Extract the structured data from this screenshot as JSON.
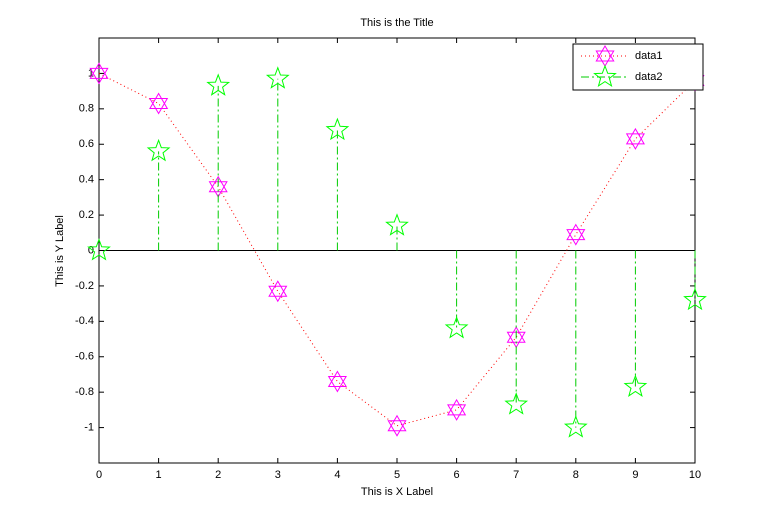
{
  "chart_data": {
    "type": "line",
    "title": "This is the Title",
    "x_label": "This is X Label",
    "y_label": "This is Y Label",
    "x": [
      0,
      1,
      2,
      3,
      4,
      5,
      6,
      7,
      8,
      9,
      10
    ],
    "series": [
      {
        "name": "data1",
        "kind": "line",
        "color": "#ff00ff",
        "line_color": "#ff0000",
        "line_style": "dotted",
        "marker": "hexagram",
        "values": [
          1,
          0.83,
          0.36,
          -0.23,
          -0.74,
          -0.99,
          -0.9,
          -0.49,
          0.09,
          0.63,
          0.96
        ]
      },
      {
        "name": "data2",
        "kind": "stem",
        "color": "#00ff00",
        "line_color": "#00cc00",
        "line_style": "dashdot",
        "marker": "pentagram",
        "values": [
          0,
          0.56,
          0.93,
          0.97,
          0.68,
          0.14,
          -0.44,
          -0.87,
          -1,
          -0.77,
          -0.28
        ]
      }
    ],
    "xlim": [
      0,
      10
    ],
    "xticks": [
      0,
      1,
      2,
      3,
      4,
      5,
      6,
      7,
      8,
      9,
      10
    ],
    "ylim": [
      -1.2,
      1.2
    ],
    "yticks": [
      -1,
      -0.8,
      -0.6,
      -0.4,
      -0.2,
      0,
      0.2,
      0.4,
      0.6,
      0.8,
      1
    ],
    "grid": false,
    "legend_loc": "upper right"
  }
}
